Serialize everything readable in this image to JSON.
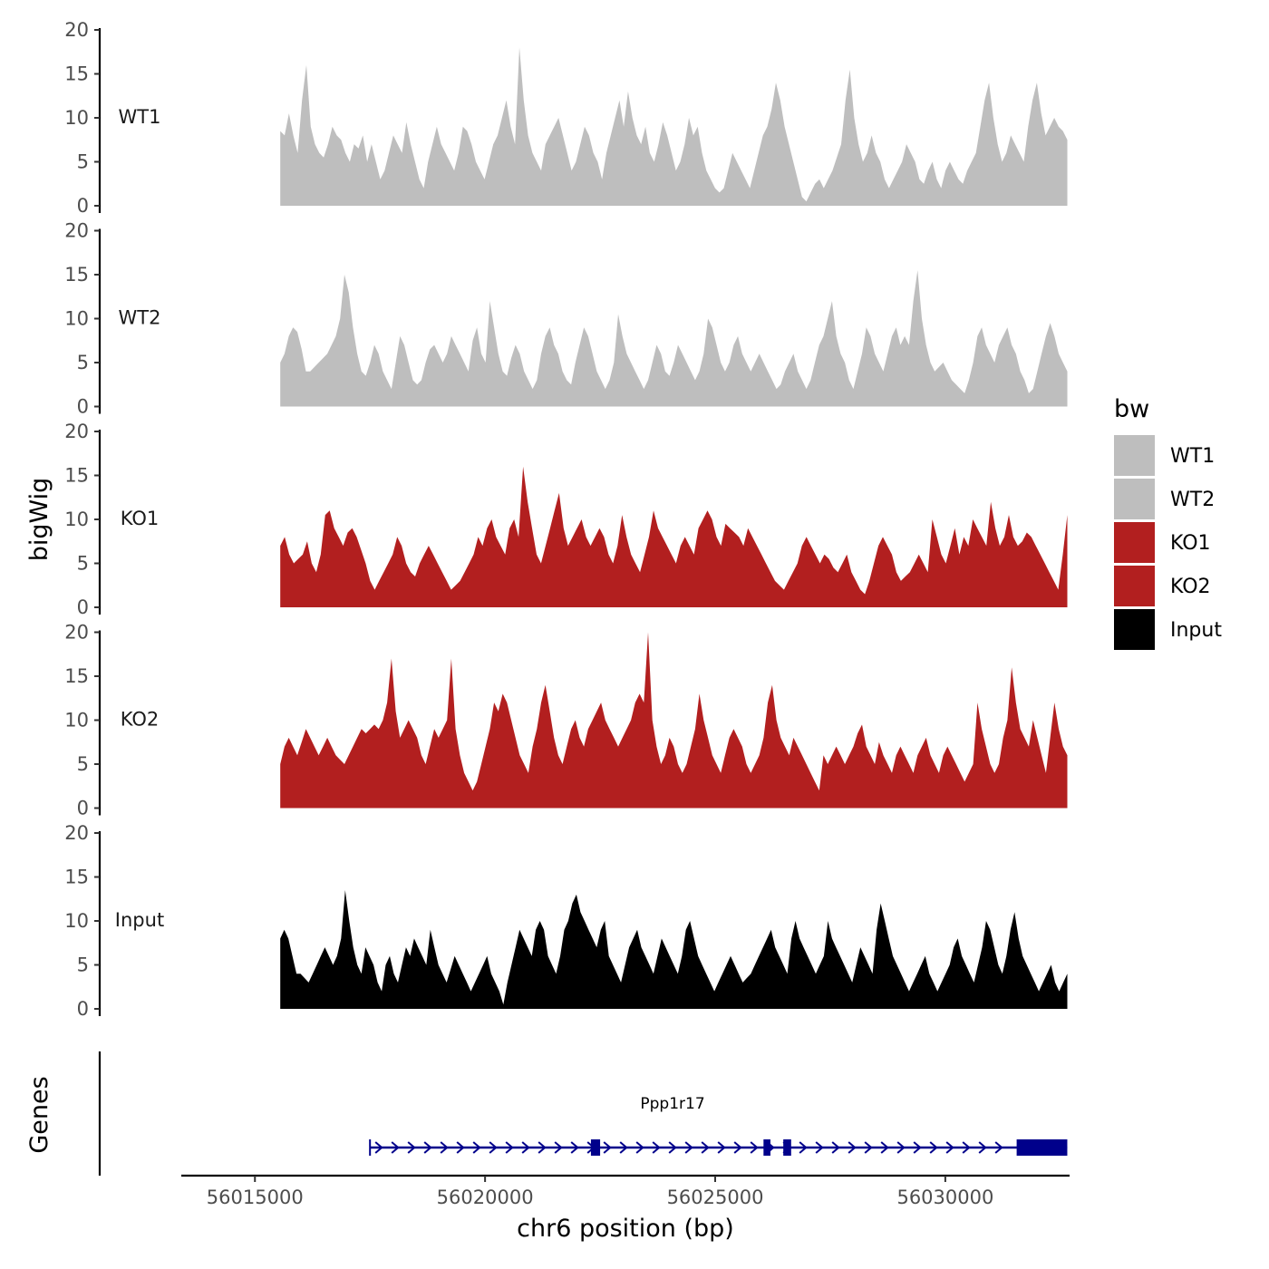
{
  "chart_data": {
    "type": "area",
    "ylabel": "bigWig",
    "xlabel": "chr6 position (bp)",
    "genes_label": "Genes",
    "ylim": [
      0,
      20
    ],
    "yticks": [
      0,
      5,
      10,
      15,
      20
    ],
    "xlim": [
      56013400,
      56032700
    ],
    "xticks": [
      56015000,
      56020000,
      56025000,
      56030000
    ],
    "xtick_labels": [
      "56015000",
      "56020000",
      "56025000",
      "56030000"
    ],
    "x_start": 56015550,
    "x_end": 56032650,
    "tracks": [
      {
        "name": "WT1",
        "color": "#bebebe",
        "values": [
          8.5,
          8,
          10.5,
          8,
          6,
          12,
          16,
          9,
          7,
          6,
          5.5,
          7,
          9,
          8,
          7.5,
          6,
          5,
          7,
          6.5,
          8,
          5,
          7,
          5,
          3,
          4,
          6,
          8,
          7,
          6,
          9.5,
          7,
          5,
          3,
          2,
          5,
          7,
          9,
          7,
          6,
          5,
          4,
          6,
          9,
          8.5,
          7,
          5,
          4,
          3,
          5,
          7,
          8,
          10,
          12,
          9,
          7,
          18,
          12,
          8,
          6,
          5,
          4,
          7,
          8,
          9,
          10,
          8,
          6,
          4,
          5,
          7,
          9,
          8,
          6,
          5,
          3,
          6,
          8,
          10,
          12,
          9,
          13,
          10,
          8,
          7,
          9,
          6,
          5,
          7,
          9.5,
          8,
          6,
          4,
          5,
          7,
          10,
          8,
          9,
          6,
          4,
          3,
          2,
          1.5,
          2,
          4,
          6,
          5,
          4,
          3,
          2,
          4,
          6,
          8,
          9,
          11,
          14,
          12,
          9,
          7,
          5,
          3,
          1,
          0.5,
          1.5,
          2.5,
          3,
          2,
          3,
          4,
          5.5,
          7,
          12,
          15.5,
          10,
          7,
          5,
          6,
          8,
          6,
          5,
          3,
          2,
          3,
          4,
          5,
          7,
          6,
          5,
          3,
          2.5,
          4,
          5,
          3,
          2,
          4,
          5,
          4,
          3,
          2.5,
          4,
          5,
          6,
          9,
          12,
          14,
          10,
          7,
          5,
          6,
          8,
          7,
          6,
          5,
          9,
          12,
          14,
          10.5,
          8,
          9,
          10,
          9,
          8.5,
          7.5
        ],
        "data_labels": []
      },
      {
        "name": "WT2",
        "color": "#bebebe",
        "values": [
          5,
          6,
          8,
          9,
          8.5,
          6.5,
          4,
          4,
          4.5,
          5,
          5.5,
          6,
          7,
          8,
          10,
          15,
          13,
          9,
          6,
          4,
          3.5,
          5,
          7,
          6,
          4,
          3,
          2,
          5,
          8,
          7,
          5,
          3,
          2.5,
          3,
          5,
          6.5,
          7,
          6,
          5,
          6,
          8,
          7,
          6,
          5,
          4,
          7.5,
          9,
          6,
          5,
          12,
          9,
          6,
          4,
          3.5,
          5.5,
          7,
          6,
          4,
          3,
          2,
          3,
          6,
          8,
          9,
          7,
          6,
          4,
          3,
          2.5,
          5,
          7,
          9,
          8,
          6,
          4,
          3,
          2,
          3,
          5,
          10.5,
          8,
          6,
          5,
          4,
          3,
          2,
          3,
          5,
          7,
          6,
          4,
          3.5,
          5,
          7,
          6,
          5,
          4,
          3,
          4,
          6,
          10,
          9,
          7,
          5,
          4,
          5,
          7,
          8,
          6,
          5,
          4,
          5,
          6,
          5,
          4,
          3,
          2,
          2.5,
          4,
          5,
          6,
          4,
          3,
          2,
          3,
          5,
          7,
          8,
          10,
          12,
          8,
          6,
          5,
          3,
          2,
          4,
          6,
          9,
          8,
          6,
          5,
          4,
          6,
          8,
          9,
          7,
          8,
          7,
          12,
          15.5,
          10,
          7,
          5,
          4,
          4.5,
          5,
          4,
          3,
          2.5,
          2,
          1.5,
          3,
          5,
          8,
          9,
          7,
          6,
          5,
          7,
          8,
          9,
          7,
          6,
          4,
          3,
          1.5,
          2,
          4,
          6,
          8,
          9.5,
          8,
          6,
          5,
          4
        ],
        "data_labels": []
      },
      {
        "name": "KO1",
        "color": "#b21f1f",
        "values": [
          7,
          8,
          6,
          5,
          5.5,
          6,
          7.5,
          5,
          4,
          6,
          10.5,
          11,
          9,
          8,
          7,
          8.5,
          9,
          8,
          6.5,
          5,
          3,
          2,
          3,
          4,
          5,
          6,
          8,
          7,
          5,
          4,
          3.5,
          5,
          6,
          7,
          6,
          5,
          4,
          3,
          2,
          2.5,
          3,
          4,
          5,
          6,
          8,
          7,
          9,
          10,
          8,
          7,
          6,
          9,
          10,
          8,
          16,
          12,
          9,
          6,
          5,
          7,
          9,
          11,
          13,
          9,
          7,
          8,
          9,
          10,
          8,
          7,
          8,
          9,
          8,
          6,
          5,
          7,
          10.5,
          8,
          6,
          5,
          4,
          6,
          8,
          11,
          9,
          8,
          7,
          6,
          5,
          7,
          8,
          7,
          6,
          9,
          10,
          11,
          10,
          8,
          7,
          9.5,
          9,
          8.5,
          8,
          7,
          9,
          8,
          7,
          6,
          5,
          4,
          3,
          2.5,
          2,
          3,
          4,
          5,
          7,
          8,
          7,
          6,
          5,
          6,
          5.5,
          4.5,
          4,
          5,
          6,
          4,
          3,
          2,
          1.5,
          3,
          5,
          7,
          8,
          7,
          6,
          4,
          3,
          3.5,
          4,
          5,
          6,
          5,
          4,
          10,
          8,
          6,
          5,
          7,
          9,
          6,
          8,
          7,
          10,
          9,
          8,
          7,
          12,
          9,
          7,
          8,
          10.5,
          8,
          7,
          7.5,
          8.5,
          8,
          7,
          6,
          5,
          4,
          3,
          2,
          6,
          10.5
        ],
        "data_labels": []
      },
      {
        "name": "KO2",
        "color": "#b21f1f",
        "values": [
          5,
          7,
          8,
          7,
          6,
          7.5,
          9,
          8,
          7,
          6,
          7,
          8,
          7,
          6,
          5.5,
          5,
          6,
          7,
          8,
          9,
          8.5,
          9,
          9.5,
          9,
          10,
          12,
          17,
          11,
          8,
          9,
          10,
          9,
          8,
          6,
          5,
          7,
          9,
          8,
          9,
          10,
          17,
          9,
          6,
          4,
          3,
          2,
          3,
          5,
          7,
          9,
          12,
          11,
          13,
          12,
          10,
          8,
          6,
          5,
          4,
          7,
          9,
          12,
          14,
          11,
          8,
          6,
          5,
          7,
          9,
          10,
          8,
          7,
          9,
          10,
          11,
          12,
          10,
          9,
          8,
          7,
          8,
          9,
          10,
          12,
          13,
          12,
          20,
          10,
          7,
          5,
          6,
          8,
          7,
          5,
          4,
          5,
          7,
          9,
          13,
          10,
          8,
          6,
          5,
          4,
          6,
          8,
          9,
          8,
          7,
          5,
          4,
          5,
          6,
          8,
          12,
          14,
          10,
          8,
          7,
          6,
          8,
          7,
          6,
          5,
          4,
          3,
          2,
          6,
          5,
          6,
          7,
          6,
          5,
          6,
          7,
          8.5,
          9.5,
          7,
          6,
          5,
          7.5,
          6,
          5,
          4,
          6,
          7,
          6,
          5,
          4,
          6,
          7,
          8,
          6,
          5,
          4,
          6,
          7,
          6,
          5,
          4,
          3,
          4,
          5,
          12,
          9,
          7,
          5,
          4,
          5,
          8,
          10,
          16,
          12,
          9,
          8,
          7,
          10,
          8,
          6,
          4,
          8,
          12,
          9,
          7,
          6
        ],
        "data_labels": []
      },
      {
        "name": "Input",
        "color": "#000000",
        "values": [
          8,
          9,
          8,
          6,
          4,
          4,
          3.5,
          3,
          4,
          5,
          6,
          7,
          6,
          5,
          6,
          8,
          13.5,
          10,
          7,
          5,
          4,
          7,
          6,
          5,
          3,
          2,
          5,
          6,
          4,
          3,
          5,
          7,
          6,
          8,
          7,
          6,
          5,
          9,
          7,
          5,
          4,
          3,
          4.5,
          6,
          5,
          4,
          3,
          2,
          3,
          4,
          5,
          6,
          4,
          3,
          2,
          0.5,
          3,
          5,
          7,
          9,
          8,
          7,
          6,
          9,
          10,
          9,
          6,
          5,
          4,
          6,
          9,
          10,
          12,
          13,
          11,
          10,
          9,
          8,
          7,
          9,
          10,
          6,
          5,
          4,
          3,
          5,
          7,
          8,
          9,
          7,
          6,
          5,
          4,
          6,
          8,
          7,
          6,
          5,
          4,
          6,
          9,
          10,
          8,
          6,
          5,
          4,
          3,
          2,
          3,
          4,
          5,
          6,
          5,
          4,
          3,
          3.5,
          4,
          5,
          6,
          7,
          8,
          9,
          7,
          6,
          5,
          4,
          8,
          10,
          8,
          7,
          6,
          5,
          4,
          5,
          6,
          10,
          8,
          7,
          6,
          5,
          4,
          3,
          5,
          7,
          6,
          5,
          4,
          9,
          12,
          10,
          8,
          6,
          5,
          4,
          3,
          2,
          3,
          4,
          5,
          6,
          4,
          3,
          2,
          3,
          4,
          5,
          7,
          8,
          6,
          5,
          4,
          3,
          5,
          7,
          10,
          9,
          7,
          5,
          4,
          6,
          9,
          11,
          8,
          6,
          5,
          4,
          3,
          2,
          3,
          4,
          5,
          3,
          2,
          3,
          4
        ],
        "data_labels": []
      }
    ],
    "legend": {
      "title": "bw",
      "items": [
        {
          "label": "WT1",
          "color": "#bebebe"
        },
        {
          "label": "WT2",
          "color": "#bebebe"
        },
        {
          "label": "KO1",
          "color": "#b21f1f"
        },
        {
          "label": "KO2",
          "color": "#b21f1f"
        },
        {
          "label": "Input",
          "color": "#000000"
        }
      ]
    },
    "gene": {
      "name": "Ppp1r17",
      "color": "#00008b",
      "start": 56017500,
      "end": 56032650,
      "exons": [
        [
          56022300,
          56022500
        ],
        [
          56026050,
          56026200
        ],
        [
          56026480,
          56026650
        ],
        [
          56031550,
          56032650
        ]
      ]
    }
  }
}
